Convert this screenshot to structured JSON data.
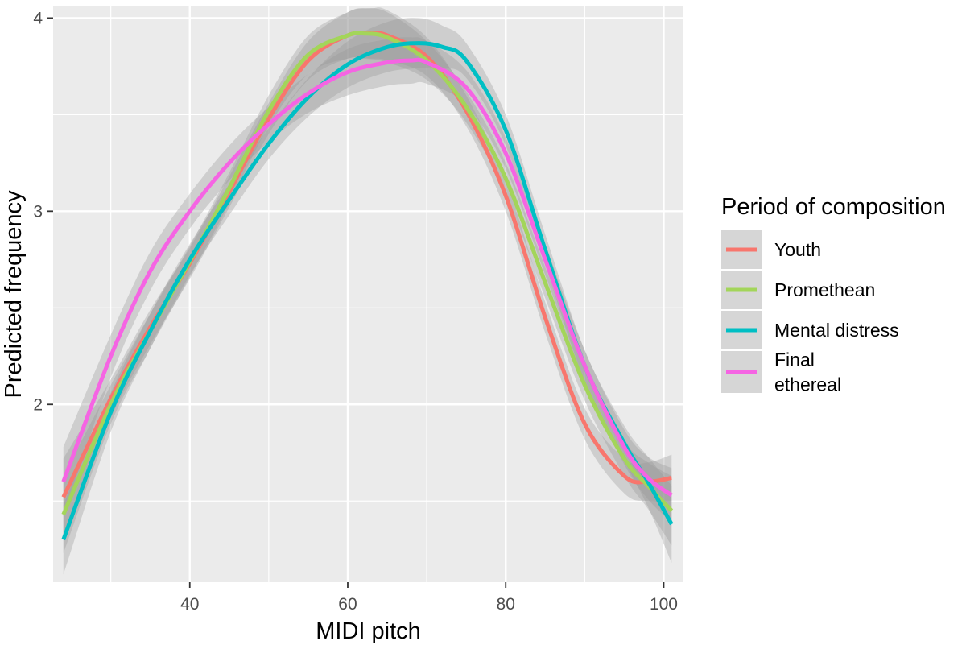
{
  "chart_data": {
    "type": "line",
    "title": "",
    "xlabel": "MIDI pitch",
    "ylabel": "Predicted frequency",
    "xlim": [
      22.7,
      102.5
    ],
    "ylim": [
      1.08,
      4.06
    ],
    "xticks": [
      40,
      60,
      80,
      100
    ],
    "xtick_labels": [
      "40",
      "60",
      "80",
      "100"
    ],
    "xticks_minor": [
      30,
      50,
      70,
      90
    ],
    "yticks": [
      2,
      3,
      4
    ],
    "ytick_labels": [
      "2",
      "3",
      "4"
    ],
    "yticks_minor": [
      1.5,
      2.5,
      3.5
    ],
    "grid": true,
    "confidence_band": true,
    "legend": {
      "title": "Period of composition",
      "position": "right",
      "entries": [
        {
          "label_lines": [
            "Youth"
          ]
        },
        {
          "label_lines": [
            "Promethean"
          ]
        },
        {
          "label_lines": [
            "Mental distress"
          ]
        },
        {
          "label_lines": [
            "Final",
            "ethereal"
          ]
        }
      ]
    },
    "series": [
      {
        "name": "Youth",
        "color": "#F8766D",
        "x": [
          24,
          30,
          35,
          40,
          45,
          50,
          55,
          60,
          63,
          65,
          70,
          75,
          80,
          85,
          90,
          95,
          98,
          101
        ],
        "y": [
          1.52,
          2.03,
          2.4,
          2.73,
          3.1,
          3.48,
          3.78,
          3.91,
          3.92,
          3.91,
          3.8,
          3.52,
          3.08,
          2.45,
          1.9,
          1.63,
          1.6,
          1.62
        ],
        "band_halfwidth": [
          0.2,
          0.1,
          0.09,
          0.08,
          0.08,
          0.08,
          0.1,
          0.12,
          0.13,
          0.13,
          0.1,
          0.08,
          0.08,
          0.08,
          0.08,
          0.09,
          0.1,
          0.12
        ]
      },
      {
        "name": "Promethean",
        "color": "#A3D55A",
        "x": [
          24,
          30,
          35,
          40,
          45,
          50,
          55,
          60,
          62,
          65,
          70,
          75,
          80,
          85,
          90,
          95,
          98,
          101
        ],
        "y": [
          1.43,
          2.0,
          2.38,
          2.74,
          3.12,
          3.52,
          3.81,
          3.91,
          3.92,
          3.9,
          3.78,
          3.54,
          3.17,
          2.63,
          2.1,
          1.72,
          1.58,
          1.45
        ],
        "band_halfwidth": [
          0.2,
          0.1,
          0.09,
          0.08,
          0.08,
          0.08,
          0.1,
          0.12,
          0.13,
          0.13,
          0.1,
          0.08,
          0.08,
          0.08,
          0.08,
          0.09,
          0.12,
          0.18
        ]
      },
      {
        "name": "Mental distress",
        "color": "#00BFC4",
        "x": [
          24,
          30,
          35,
          40,
          45,
          50,
          55,
          60,
          65,
          69,
          72,
          75,
          80,
          85,
          90,
          95,
          98,
          101
        ],
        "y": [
          1.3,
          1.96,
          2.38,
          2.75,
          3.06,
          3.35,
          3.59,
          3.76,
          3.85,
          3.87,
          3.85,
          3.78,
          3.42,
          2.8,
          2.2,
          1.8,
          1.6,
          1.38
        ],
        "band_halfwidth": [
          0.18,
          0.1,
          0.09,
          0.08,
          0.08,
          0.08,
          0.1,
          0.12,
          0.13,
          0.13,
          0.11,
          0.09,
          0.08,
          0.08,
          0.08,
          0.09,
          0.13,
          0.2
        ]
      },
      {
        "name": "Final ethereal",
        "color": "#F564E3",
        "x": [
          24,
          30,
          35,
          40,
          45,
          50,
          55,
          60,
          65,
          68,
          70,
          75,
          80,
          85,
          90,
          95,
          98,
          101
        ],
        "y": [
          1.6,
          2.25,
          2.69,
          3.0,
          3.25,
          3.45,
          3.61,
          3.72,
          3.77,
          3.78,
          3.77,
          3.64,
          3.3,
          2.75,
          2.2,
          1.78,
          1.62,
          1.53
        ],
        "band_halfwidth": [
          0.18,
          0.11,
          0.1,
          0.09,
          0.09,
          0.09,
          0.1,
          0.12,
          0.12,
          0.12,
          0.11,
          0.09,
          0.08,
          0.08,
          0.08,
          0.09,
          0.11,
          0.14
        ]
      }
    ]
  }
}
